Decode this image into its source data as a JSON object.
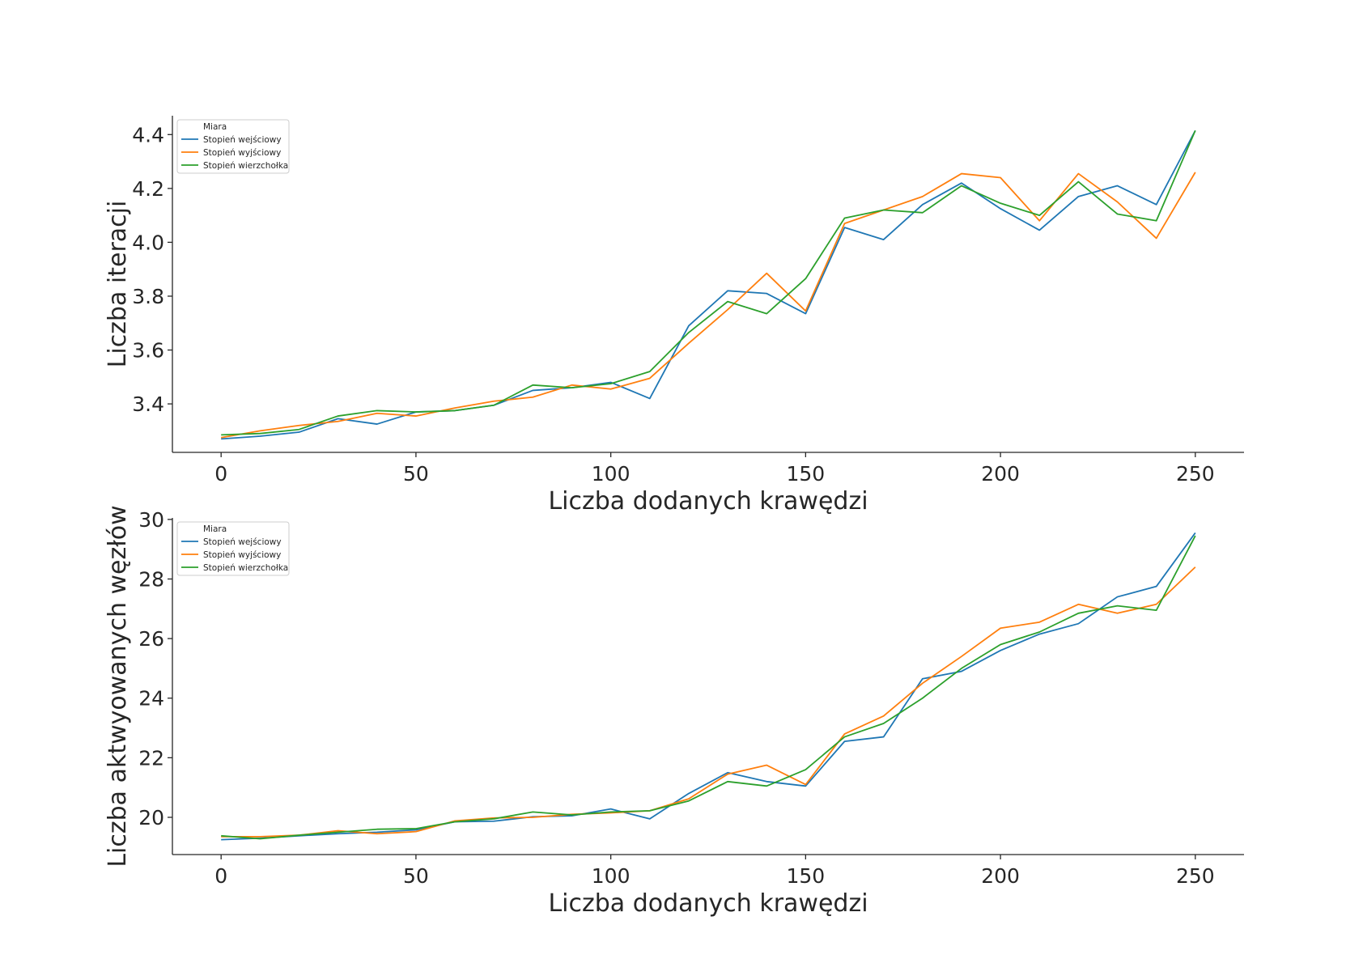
{
  "colors": {
    "series_0": "#1f77b4",
    "series_1": "#ff7f0e",
    "series_2": "#2ca02c",
    "axis": "#262626"
  },
  "chart_data": [
    {
      "type": "line",
      "xlabel": "Liczba dodanych krawędzi",
      "ylabel": "Liczba iteracji",
      "xlim": [
        -12.5,
        262.5
      ],
      "ylim": [
        3.22,
        4.47
      ],
      "xticks": [
        0,
        50,
        100,
        150,
        200,
        250
      ],
      "yticks": [
        3.4,
        3.6,
        3.8,
        4.0,
        4.2,
        4.4
      ],
      "ytick_decimals": 1,
      "grid": false,
      "legend": {
        "title": "Miara",
        "position": "top-left"
      },
      "x": [
        0,
        10,
        20,
        30,
        40,
        50,
        60,
        70,
        80,
        90,
        100,
        110,
        120,
        130,
        140,
        150,
        160,
        170,
        180,
        190,
        200,
        210,
        220,
        230,
        240,
        250
      ],
      "series": [
        {
          "name": "Stopień wejściowy",
          "values": [
            3.27,
            3.28,
            3.295,
            3.345,
            3.325,
            3.37,
            3.375,
            3.395,
            3.45,
            3.46,
            3.48,
            3.42,
            3.69,
            3.82,
            3.81,
            3.735,
            4.055,
            4.01,
            4.14,
            4.22,
            4.125,
            4.045,
            4.17,
            4.21,
            4.14,
            4.415
          ]
        },
        {
          "name": "Stopień wyjściowy",
          "values": [
            3.275,
            3.3,
            3.32,
            3.335,
            3.365,
            3.355,
            3.385,
            3.41,
            3.425,
            3.47,
            3.455,
            3.495,
            3.625,
            3.75,
            3.885,
            3.745,
            4.07,
            4.12,
            4.17,
            4.255,
            4.24,
            4.08,
            4.255,
            4.15,
            4.015,
            4.26
          ]
        },
        {
          "name": "Stopień wierzchołka",
          "values": [
            3.285,
            3.29,
            3.305,
            3.355,
            3.375,
            3.37,
            3.375,
            3.395,
            3.47,
            3.46,
            3.475,
            3.52,
            3.665,
            3.78,
            3.735,
            3.865,
            4.09,
            4.12,
            4.11,
            4.21,
            4.145,
            4.1,
            4.225,
            4.105,
            4.08,
            4.415
          ]
        }
      ]
    },
    {
      "type": "line",
      "xlabel": "Liczba dodanych krawędzi",
      "ylabel": "Liczba aktwyowanych węzłów",
      "xlim": [
        -12.5,
        262.5
      ],
      "ylim": [
        18.75,
        30.05
      ],
      "xticks": [
        0,
        50,
        100,
        150,
        200,
        250
      ],
      "yticks": [
        20,
        22,
        24,
        26,
        28,
        30
      ],
      "ytick_decimals": 0,
      "grid": false,
      "legend": {
        "title": "Miara",
        "position": "top-left"
      },
      "x": [
        0,
        10,
        20,
        30,
        40,
        50,
        60,
        70,
        80,
        90,
        100,
        110,
        120,
        130,
        140,
        150,
        160,
        170,
        180,
        190,
        200,
        210,
        220,
        230,
        240,
        250
      ],
      "series": [
        {
          "name": "Stopień wejściowy",
          "values": [
            19.25,
            19.3,
            19.38,
            19.45,
            19.5,
            19.58,
            19.85,
            19.87,
            20.02,
            20.05,
            20.28,
            19.95,
            20.8,
            21.5,
            21.2,
            21.05,
            22.55,
            22.7,
            24.65,
            24.9,
            25.6,
            26.15,
            26.5,
            27.4,
            27.75,
            29.55
          ]
        },
        {
          "name": "Stopień wyjściowy",
          "values": [
            19.35,
            19.35,
            19.4,
            19.55,
            19.45,
            19.52,
            19.88,
            19.98,
            20.0,
            20.1,
            20.15,
            20.22,
            20.62,
            21.45,
            21.75,
            21.1,
            22.8,
            23.4,
            24.5,
            25.4,
            26.35,
            26.55,
            27.15,
            26.85,
            27.15,
            28.4
          ]
        },
        {
          "name": "Stopień wierzchołka",
          "values": [
            19.38,
            19.28,
            19.4,
            19.5,
            19.6,
            19.62,
            19.85,
            19.95,
            20.18,
            20.08,
            20.18,
            20.22,
            20.55,
            21.2,
            21.05,
            21.6,
            22.7,
            23.15,
            24.0,
            25.0,
            25.8,
            26.22,
            26.85,
            27.1,
            26.95,
            29.45
          ]
        }
      ]
    }
  ]
}
